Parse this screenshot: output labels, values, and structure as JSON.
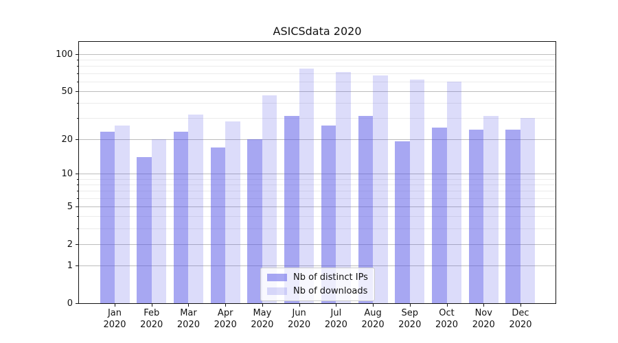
{
  "chart_data": {
    "type": "bar",
    "title": "ASICSdata 2020",
    "categories": [
      "Jan",
      "Feb",
      "Mar",
      "Apr",
      "May",
      "Jun",
      "Jul",
      "Aug",
      "Sep",
      "Oct",
      "Nov",
      "Dec"
    ],
    "year_label": "2020",
    "series": [
      {
        "name": "Nb of distinct IPs",
        "color": "rgba(80,80,230,0.5)",
        "values": [
          23,
          14,
          23,
          17,
          20,
          31,
          26,
          31,
          19,
          25,
          24,
          24
        ]
      },
      {
        "name": "Nb of downloads",
        "color": "rgba(80,80,230,0.2)",
        "values": [
          26,
          20,
          32,
          28,
          46,
          76,
          72,
          67,
          62,
          60,
          31,
          30
        ]
      }
    ],
    "y_scale": "log10(1+v)",
    "ylim": [
      0,
      126
    ],
    "y_major_ticks": [
      100,
      50,
      20,
      10,
      5,
      2,
      1,
      0
    ],
    "y_minor_ticks": [
      3,
      4,
      6,
      7,
      8,
      9,
      30,
      40,
      60,
      70,
      80,
      90
    ],
    "grid": true,
    "legend_position": "lower center"
  },
  "colors": {
    "background": "#ffffff",
    "bar_distinct_ips": "rgba(80,80,230,0.5)",
    "bar_downloads": "rgba(80,80,230,0.2)",
    "grid_major": "#bcbcbc",
    "grid_minor": "#ebebeb",
    "axis": "#111111",
    "text": "#111111"
  }
}
